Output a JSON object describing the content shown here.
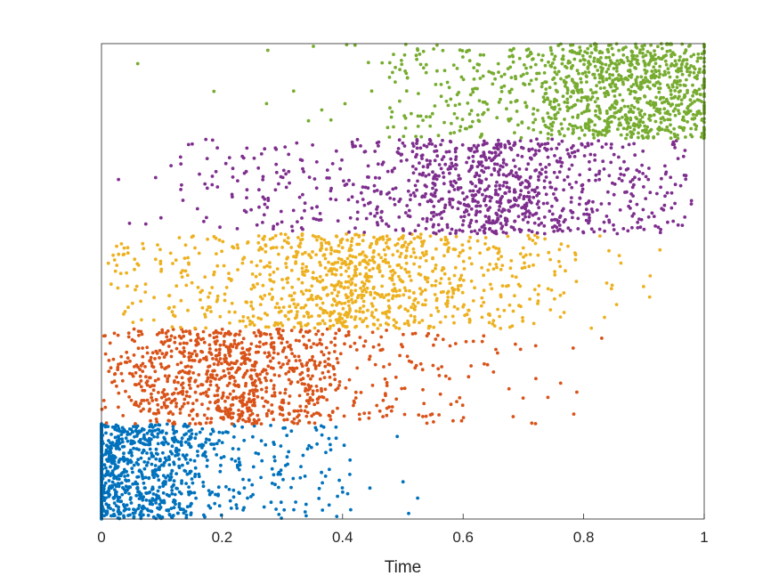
{
  "chart_data": {
    "type": "scatter",
    "title": "",
    "xlabel": "Time",
    "ylabel": "",
    "xlim": [
      0,
      1
    ],
    "ylim": [
      0,
      5
    ],
    "x_ticks": [
      {
        "value": 0,
        "label": "0"
      },
      {
        "value": 0.2,
        "label": "0.2"
      },
      {
        "value": 0.4,
        "label": "0.4"
      },
      {
        "value": 0.6,
        "label": "0.6"
      },
      {
        "value": 0.8,
        "label": "0.8"
      },
      {
        "value": 1,
        "label": "1"
      }
    ],
    "y_ticks_visible": false,
    "grid": false,
    "legend": "none",
    "series": [
      {
        "color": "#0072BD",
        "band": [
          0,
          1
        ],
        "x_peak": 0.0,
        "x_max": 0.66,
        "decay": 0.2,
        "points": 1100
      },
      {
        "color": "#D95319",
        "band": [
          1,
          2
        ],
        "x_peak": 0.22,
        "x_max": 0.85,
        "decay": 0.22,
        "points": 1000
      },
      {
        "color": "#EDB120",
        "band": [
          2,
          3
        ],
        "x_peak": 0.42,
        "x_max": 0.93,
        "decay": 0.22,
        "points": 1000
      },
      {
        "color": "#7E2F8E",
        "band": [
          3,
          4
        ],
        "x_peak": 0.66,
        "x_max": 0.98,
        "decay": 0.22,
        "points": 1000
      },
      {
        "color": "#77AC30",
        "band": [
          4,
          5
        ],
        "x_peak": 0.9,
        "x_max": 1.0,
        "decay": 0.22,
        "points": 1100
      }
    ]
  }
}
